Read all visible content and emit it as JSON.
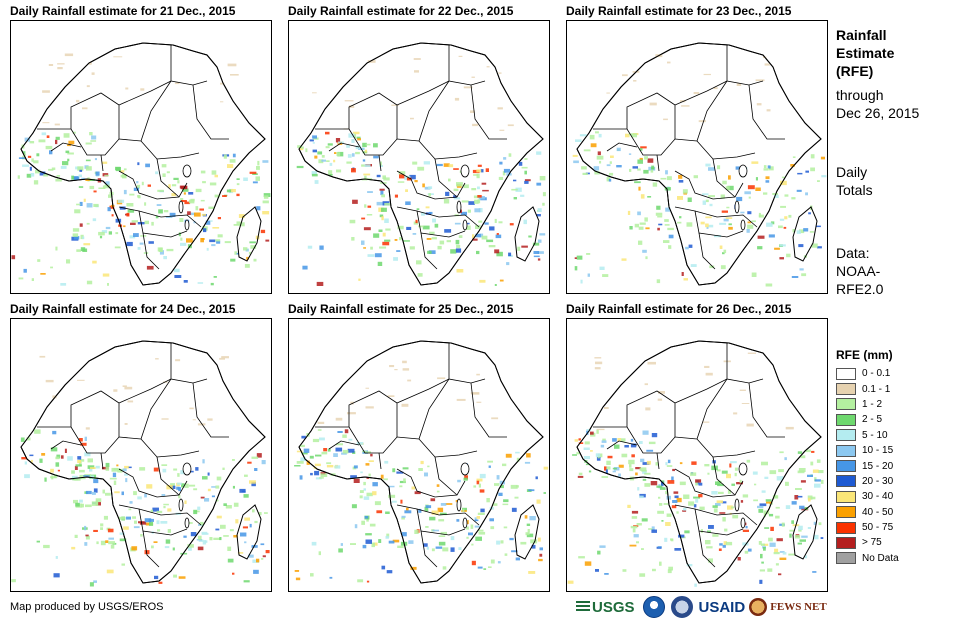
{
  "panels": [
    {
      "title": "Daily Rainfall estimate for 21 Dec., 2015",
      "rain_level": 0.75
    },
    {
      "title": "Daily Rainfall estimate for 22 Dec., 2015",
      "rain_level": 0.7
    },
    {
      "title": "Daily Rainfall estimate for 23 Dec., 2015",
      "rain_level": 0.55
    },
    {
      "title": "Daily Rainfall estimate for 24 Dec., 2015",
      "rain_level": 0.7
    },
    {
      "title": "Daily Rainfall estimate for 25 Dec., 2015",
      "rain_level": 0.65
    },
    {
      "title": "Daily Rainfall estimate for 26 Dec., 2015",
      "rain_level": 0.8
    }
  ],
  "side": {
    "title_lines": [
      "Rainfall",
      "Estimate",
      "(RFE)"
    ],
    "through_lines": [
      "through",
      "Dec 26, 2015"
    ],
    "totals_lines": [
      "Daily",
      "Totals"
    ],
    "source_lines": [
      "Data:",
      "NOAA-",
      "RFE2.0"
    ]
  },
  "legend": {
    "title": "RFE (mm)",
    "items": [
      {
        "label": "0 - 0.1",
        "color": "#ffffff"
      },
      {
        "label": "0.1 - 1",
        "color": "#e6d2b0"
      },
      {
        "label": "1 - 2",
        "color": "#b4f0a0"
      },
      {
        "label": "2 - 5",
        "color": "#6ed86e"
      },
      {
        "label": "5 - 10",
        "color": "#b4ecf0"
      },
      {
        "label": "10 - 15",
        "color": "#8cc8f0"
      },
      {
        "label": "15 - 20",
        "color": "#4696e6"
      },
      {
        "label": "20 - 30",
        "color": "#1e5ad2"
      },
      {
        "label": "30 - 40",
        "color": "#fae678"
      },
      {
        "label": "40 - 50",
        "color": "#faa000"
      },
      {
        "label": "50 - 75",
        "color": "#fa3200"
      },
      {
        "label": "> 75",
        "color": "#b41e1e"
      },
      {
        "label": "No Data",
        "color": "#a0a0a0"
      }
    ]
  },
  "credit": "Map produced by USGS/EROS",
  "logos": {
    "usgs": "USGS",
    "usaid": "USAID",
    "fews": "FEWS NET"
  },
  "colors": {
    "border": "#000000",
    "land": "#ffffff"
  }
}
